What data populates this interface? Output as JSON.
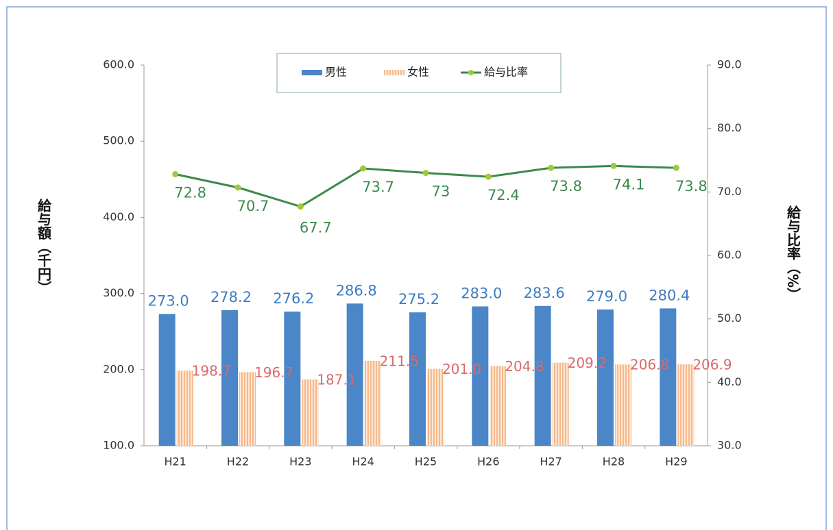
{
  "chart_data": {
    "type": "bar-line",
    "y_label": "給与額（千円）",
    "y2_label": "給与比率（%）",
    "categories": [
      "H21",
      "H22",
      "H23",
      "H24",
      "H25",
      "H26",
      "H27",
      "H28",
      "H29"
    ],
    "series": [
      {
        "name": "男性",
        "type": "bar",
        "color": "#4a86c8",
        "values": [
          273.0,
          278.2,
          276.2,
          286.8,
          275.2,
          283.0,
          283.6,
          279.0,
          280.4
        ],
        "value_labels": [
          "273.0",
          "278.2",
          "276.2",
          "286.8",
          "275.2",
          "283.0",
          "283.6",
          "279.0",
          "280.4"
        ]
      },
      {
        "name": "女性",
        "type": "bar",
        "color": "#f6b98a",
        "values": [
          198.7,
          196.7,
          187.1,
          211.5,
          201.0,
          204.8,
          209.2,
          206.8,
          206.9
        ],
        "value_labels": [
          "198.7",
          "196.7",
          "187.1",
          "211.5",
          "201.0",
          "204.8",
          "209.2",
          "206.8",
          "206.9"
        ]
      },
      {
        "name": "給与比率",
        "type": "line",
        "axis": "y2",
        "color": "#3a8a4a",
        "values": [
          72.8,
          70.7,
          67.7,
          73.7,
          73.0,
          72.4,
          73.8,
          74.1,
          73.8
        ]
      }
    ],
    "ylim": [
      100,
      600
    ],
    "yticks": [
      {
        "value": 100,
        "label": "100.0"
      },
      {
        "value": 200,
        "label": "200.0"
      },
      {
        "value": 300,
        "label": "300.0"
      },
      {
        "value": 400,
        "label": "400.0"
      },
      {
        "value": 500,
        "label": "500.0"
      },
      {
        "value": 600,
        "label": "600.0"
      }
    ],
    "y2lim": [
      30,
      90
    ],
    "y2ticks": [
      {
        "value": 30,
        "label": "30.0"
      },
      {
        "value": 40,
        "label": "40.0"
      },
      {
        "value": 50,
        "label": "50.0"
      },
      {
        "value": 60,
        "label": "60.0"
      },
      {
        "value": 70,
        "label": "70.0"
      },
      {
        "value": 80,
        "label": "80.0"
      },
      {
        "value": 90,
        "label": "90.0"
      }
    ],
    "legend": "top"
  }
}
